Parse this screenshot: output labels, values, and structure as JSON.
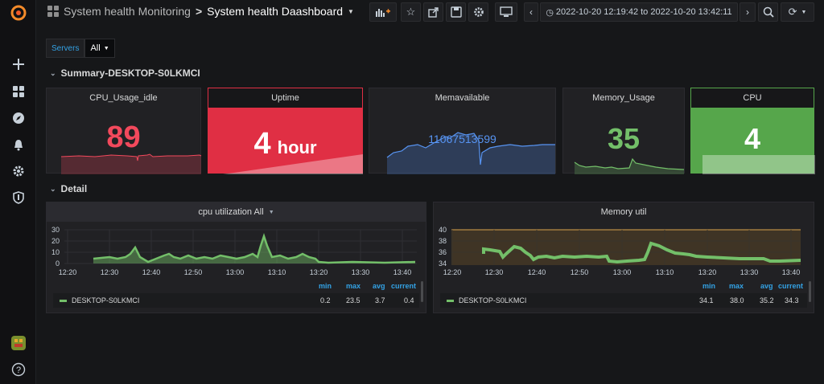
{
  "breadcrumb": {
    "folder": "System health Monitoring",
    "separator": ">",
    "dashboard": "System health Daashboard"
  },
  "time_range": "2022-10-20 12:19:42 to 2022-10-20 13:42:11",
  "variables": {
    "label": "Servers",
    "value": "All"
  },
  "rows": {
    "summary": "Summary-DESKTOP-S0LKMCI",
    "detail": "Detail"
  },
  "stats": {
    "cpu_idle": {
      "title": "CPU_Usage_idle",
      "value": "89",
      "color": "#f2495c"
    },
    "uptime": {
      "title": "Uptime",
      "value": "4",
      "unit": "hour",
      "color": "#e02f44"
    },
    "memavailable": {
      "title": "Memavailable",
      "value": "11067513599",
      "color": "#5794f2"
    },
    "memory_usage": {
      "title": "Memory_Usage",
      "value": "35",
      "color": "#73bf69"
    },
    "cpu": {
      "title": "CPU",
      "value": "4",
      "color": "#56a64b"
    }
  },
  "graph_cpu": {
    "title": "cpu utilization All",
    "y_ticks": [
      "30",
      "20",
      "10",
      "0"
    ],
    "x_ticks": [
      "12:20",
      "12:30",
      "12:40",
      "12:50",
      "13:00",
      "13:10",
      "13:20",
      "13:30",
      "13:40"
    ],
    "legend_headers": {
      "min": "min",
      "max": "max",
      "avg": "avg",
      "current": "current"
    },
    "series": {
      "name": "DESKTOP-S0LKMCI",
      "min": "0.2",
      "max": "23.5",
      "avg": "3.7",
      "current": "0.4",
      "color": "#73bf69"
    }
  },
  "graph_mem": {
    "title": "Memory util",
    "y_ticks": [
      "40",
      "38",
      "36",
      "34"
    ],
    "x_ticks": [
      "12:20",
      "12:30",
      "12:40",
      "12:50",
      "13:00",
      "13:10",
      "13:20",
      "13:30",
      "13:40"
    ],
    "legend_headers": {
      "min": "min",
      "max": "max",
      "avg": "avg",
      "current": "current"
    },
    "series": {
      "name": "DESKTOP-S0LKMCI",
      "min": "34.1",
      "max": "38.0",
      "avg": "35.2",
      "current": "34.3",
      "color": "#73bf69"
    }
  }
}
